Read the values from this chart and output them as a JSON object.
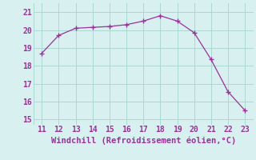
{
  "x": [
    11,
    12,
    13,
    14,
    15,
    16,
    17,
    18,
    19,
    20,
    21,
    22,
    23
  ],
  "y": [
    18.7,
    19.7,
    20.1,
    20.15,
    20.2,
    20.3,
    20.5,
    20.8,
    20.5,
    19.85,
    18.35,
    16.55,
    15.5
  ],
  "line_color": "#993399",
  "marker_color": "#993399",
  "bg_color": "#d8f0f0",
  "grid_color": "#aad8d0",
  "xlabel": "Windchill (Refroidissement éolien,°C)",
  "xlabel_color": "#993399",
  "xlabel_fontsize": 7.5,
  "tick_color": "#993399",
  "tick_fontsize": 7,
  "xlim": [
    10.5,
    23.5
  ],
  "ylim": [
    14.7,
    21.5
  ],
  "yticks": [
    15,
    16,
    17,
    18,
    19,
    20,
    21
  ],
  "xticks": [
    11,
    12,
    13,
    14,
    15,
    16,
    17,
    18,
    19,
    20,
    21,
    22,
    23
  ]
}
